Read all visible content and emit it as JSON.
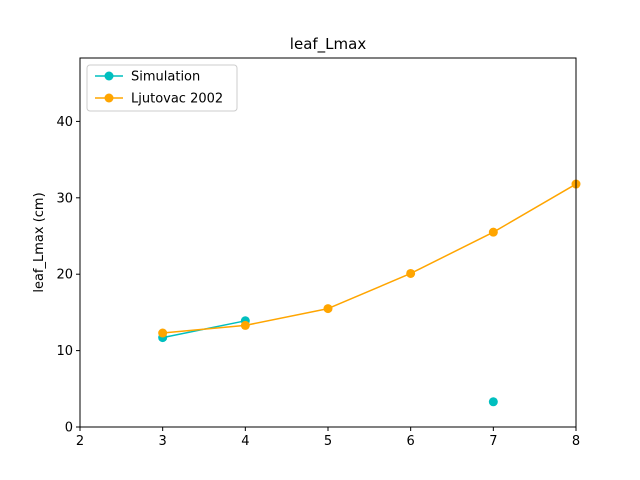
{
  "chart_data": {
    "type": "line",
    "title": "leaf_Lmax",
    "xlabel": "",
    "ylabel": "leaf_Lmax (cm)",
    "xlim": [
      2,
      8
    ],
    "ylim": [
      0,
      48.3
    ],
    "xticks": [
      2,
      3,
      4,
      5,
      6,
      7,
      8
    ],
    "yticks": [
      0,
      10,
      20,
      30,
      40
    ],
    "grid": false,
    "legend_position": "top-left",
    "series": [
      {
        "name": "Simulation",
        "color": "#00bfbf",
        "segments": [
          [
            {
              "x": 3,
              "y": 11.7
            },
            {
              "x": 4,
              "y": 13.9
            }
          ],
          [
            {
              "x": 7,
              "y": 3.3
            }
          ]
        ]
      },
      {
        "name": "Ljutovac 2002",
        "color": "#ffa500",
        "segments": [
          [
            {
              "x": 3,
              "y": 12.3
            },
            {
              "x": 4,
              "y": 13.3
            },
            {
              "x": 5,
              "y": 15.5
            },
            {
              "x": 6,
              "y": 20.1
            },
            {
              "x": 7,
              "y": 25.5
            },
            {
              "x": 8,
              "y": 31.8
            }
          ]
        ]
      }
    ]
  }
}
